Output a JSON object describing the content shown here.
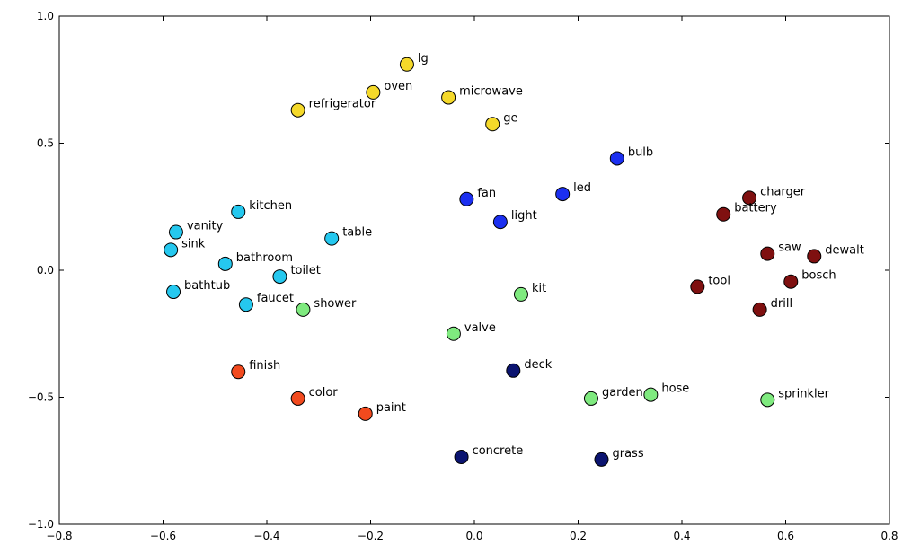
{
  "chart_data": {
    "type": "scatter",
    "title": "",
    "xlabel": "",
    "ylabel": "",
    "xlim": [
      -0.8,
      0.8
    ],
    "ylim": [
      -1.0,
      1.0
    ],
    "x_ticks": [
      "−0.8",
      "−0.6",
      "−0.4",
      "−0.2",
      "0.0",
      "0.2",
      "0.4",
      "0.6",
      "0.8"
    ],
    "y_ticks": [
      "−1.0",
      "−0.5",
      "0.0",
      "0.5",
      "1.0"
    ],
    "grid": false,
    "colors": {
      "yellow": "#f5d92a",
      "blue": "#1b2ff0",
      "cyan": "#25c8ef",
      "maroon": "#7f1010",
      "lightgreen": "#7fea7f",
      "navy": "#0b1470",
      "orangered": "#f24a1e"
    },
    "points": [
      {
        "label": "lg",
        "x": -0.13,
        "y": 0.81,
        "color": "yellow"
      },
      {
        "label": "oven",
        "x": -0.195,
        "y": 0.7,
        "color": "yellow"
      },
      {
        "label": "microwave",
        "x": -0.05,
        "y": 0.68,
        "color": "yellow"
      },
      {
        "label": "refrigerator",
        "x": -0.34,
        "y": 0.63,
        "color": "yellow"
      },
      {
        "label": "ge",
        "x": 0.035,
        "y": 0.575,
        "color": "yellow"
      },
      {
        "label": "bulb",
        "x": 0.275,
        "y": 0.44,
        "color": "blue"
      },
      {
        "label": "led",
        "x": 0.17,
        "y": 0.3,
        "color": "blue"
      },
      {
        "label": "fan",
        "x": -0.015,
        "y": 0.28,
        "color": "blue"
      },
      {
        "label": "light",
        "x": 0.05,
        "y": 0.19,
        "color": "blue"
      },
      {
        "label": "kitchen",
        "x": -0.455,
        "y": 0.23,
        "color": "cyan"
      },
      {
        "label": "vanity",
        "x": -0.575,
        "y": 0.15,
        "color": "cyan"
      },
      {
        "label": "table",
        "x": -0.275,
        "y": 0.125,
        "color": "cyan"
      },
      {
        "label": "sink",
        "x": -0.585,
        "y": 0.08,
        "color": "cyan"
      },
      {
        "label": "bathroom",
        "x": -0.48,
        "y": 0.025,
        "color": "cyan"
      },
      {
        "label": "toilet",
        "x": -0.375,
        "y": -0.025,
        "color": "cyan"
      },
      {
        "label": "bathtub",
        "x": -0.58,
        "y": -0.085,
        "color": "cyan"
      },
      {
        "label": "faucet",
        "x": -0.44,
        "y": -0.135,
        "color": "cyan"
      },
      {
        "label": "charger",
        "x": 0.53,
        "y": 0.285,
        "color": "maroon"
      },
      {
        "label": "battery",
        "x": 0.48,
        "y": 0.22,
        "color": "maroon"
      },
      {
        "label": "saw",
        "x": 0.565,
        "y": 0.065,
        "color": "maroon"
      },
      {
        "label": "dewalt",
        "x": 0.655,
        "y": 0.055,
        "color": "maroon"
      },
      {
        "label": "bosch",
        "x": 0.61,
        "y": -0.045,
        "color": "maroon"
      },
      {
        "label": "tool",
        "x": 0.43,
        "y": -0.065,
        "color": "maroon"
      },
      {
        "label": "drill",
        "x": 0.55,
        "y": -0.155,
        "color": "maroon"
      },
      {
        "label": "kit",
        "x": 0.09,
        "y": -0.095,
        "color": "lightgreen"
      },
      {
        "label": "shower",
        "x": -0.33,
        "y": -0.155,
        "color": "lightgreen"
      },
      {
        "label": "valve",
        "x": -0.04,
        "y": -0.25,
        "color": "lightgreen"
      },
      {
        "label": "garden",
        "x": 0.225,
        "y": -0.505,
        "color": "lightgreen"
      },
      {
        "label": "hose",
        "x": 0.34,
        "y": -0.49,
        "color": "lightgreen"
      },
      {
        "label": "sprinkler",
        "x": 0.565,
        "y": -0.51,
        "color": "lightgreen"
      },
      {
        "label": "deck",
        "x": 0.075,
        "y": -0.395,
        "color": "navy"
      },
      {
        "label": "concrete",
        "x": -0.025,
        "y": -0.735,
        "color": "navy"
      },
      {
        "label": "grass",
        "x": 0.245,
        "y": -0.745,
        "color": "navy"
      },
      {
        "label": "finish",
        "x": -0.455,
        "y": -0.4,
        "color": "orangered"
      },
      {
        "label": "color",
        "x": -0.34,
        "y": -0.505,
        "color": "orangered"
      },
      {
        "label": "paint",
        "x": -0.21,
        "y": -0.565,
        "color": "orangered"
      }
    ]
  }
}
